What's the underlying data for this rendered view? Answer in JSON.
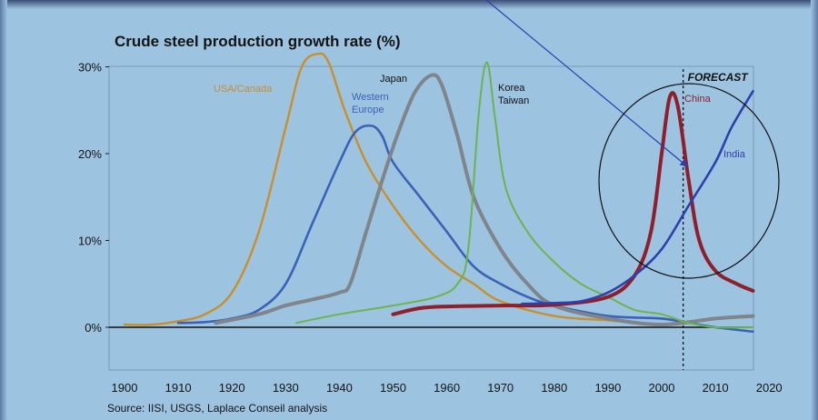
{
  "chart_data": {
    "type": "line",
    "title": "Crude steel production growth rate (%)",
    "source": "Source: IISI, USGS, Laplace Conseil analysis",
    "forecast_label": "FORECAST",
    "forecast_year": 2004,
    "xlim": [
      1900,
      2020
    ],
    "ylim": [
      -5,
      30
    ],
    "x_ticks": [
      1900,
      1910,
      1920,
      1930,
      1940,
      1950,
      1960,
      1970,
      1980,
      1990,
      2000,
      2010,
      2020
    ],
    "y_ticks": [
      {
        "value": 0,
        "label": "0%"
      },
      {
        "value": 10,
        "label": "10%"
      },
      {
        "value": 20,
        "label": "20%"
      },
      {
        "value": 30,
        "label": "30%"
      }
    ],
    "series": [
      {
        "name": "USA/Canada",
        "color": "#c98f2a",
        "points": [
          [
            1900,
            0.3
          ],
          [
            1905,
            0.3
          ],
          [
            1910,
            0.7
          ],
          [
            1915,
            1.5
          ],
          [
            1920,
            4
          ],
          [
            1925,
            11
          ],
          [
            1930,
            23
          ],
          [
            1933,
            30
          ],
          [
            1936,
            31.5
          ],
          [
            1938,
            30.5
          ],
          [
            1941,
            25
          ],
          [
            1945,
            19
          ],
          [
            1950,
            14
          ],
          [
            1955,
            10
          ],
          [
            1960,
            7
          ],
          [
            1965,
            5
          ],
          [
            1970,
            3
          ],
          [
            1980,
            1.3
          ],
          [
            1990,
            0.8
          ],
          [
            2000,
            0.3
          ],
          [
            2005,
            0.5
          ],
          [
            2010,
            1
          ],
          [
            2017,
            1.2
          ]
        ]
      },
      {
        "name": "Western Europe",
        "label_lines": [
          "Western",
          "Europe"
        ],
        "color": "#3a62b6",
        "points": [
          [
            1910,
            0.5
          ],
          [
            1915,
            0.6
          ],
          [
            1920,
            1
          ],
          [
            1925,
            2
          ],
          [
            1930,
            5
          ],
          [
            1935,
            12
          ],
          [
            1940,
            19
          ],
          [
            1943,
            22.5
          ],
          [
            1946,
            23.2
          ],
          [
            1948,
            22
          ],
          [
            1950,
            19
          ],
          [
            1955,
            15
          ],
          [
            1960,
            11
          ],
          [
            1965,
            7
          ],
          [
            1970,
            5
          ],
          [
            1975,
            3.5
          ],
          [
            1980,
            2.5
          ],
          [
            1990,
            1.3
          ],
          [
            2000,
            1
          ],
          [
            2005,
            0.5
          ],
          [
            2010,
            0
          ],
          [
            2017,
            -0.5
          ]
        ]
      },
      {
        "name": "Japan",
        "color": "#7f858a",
        "points": [
          [
            1917,
            0.5
          ],
          [
            1925,
            1.5
          ],
          [
            1930,
            2.5
          ],
          [
            1935,
            3.2
          ],
          [
            1940,
            4
          ],
          [
            1942,
            5
          ],
          [
            1945,
            11
          ],
          [
            1948,
            17
          ],
          [
            1951,
            22.5
          ],
          [
            1954,
            27
          ],
          [
            1957,
            29
          ],
          [
            1959,
            28
          ],
          [
            1962,
            22
          ],
          [
            1965,
            15
          ],
          [
            1970,
            9
          ],
          [
            1975,
            5
          ],
          [
            1980,
            2.5
          ],
          [
            1990,
            1
          ],
          [
            2000,
            0.3
          ],
          [
            2010,
            1
          ],
          [
            2017,
            1.3
          ]
        ]
      },
      {
        "name": "Korea Taiwan",
        "label_lines": [
          "Korea",
          "Taiwan"
        ],
        "color": "#6db44c",
        "points": [
          [
            1932,
            0.5
          ],
          [
            1940,
            1.5
          ],
          [
            1950,
            2.5
          ],
          [
            1958,
            3.5
          ],
          [
            1962,
            5
          ],
          [
            1964,
            9
          ],
          [
            1966,
            25
          ],
          [
            1967.5,
            30.5
          ],
          [
            1969,
            24
          ],
          [
            1971,
            16
          ],
          [
            1975,
            11
          ],
          [
            1980,
            7.5
          ],
          [
            1985,
            5
          ],
          [
            1990,
            3.5
          ],
          [
            1995,
            2
          ],
          [
            2000,
            1.5
          ],
          [
            2005,
            0.5
          ],
          [
            2010,
            0
          ],
          [
            2017,
            0
          ]
        ]
      },
      {
        "name": "China",
        "color": "#8e1f2b",
        "points": [
          [
            1950,
            1.5
          ],
          [
            1955,
            2.2
          ],
          [
            1960,
            2.4
          ],
          [
            1970,
            2.5
          ],
          [
            1980,
            2.6
          ],
          [
            1990,
            3.5
          ],
          [
            1995,
            6
          ],
          [
            1998,
            11
          ],
          [
            2000,
            20
          ],
          [
            2001.5,
            26.5
          ],
          [
            2003,
            25.5
          ],
          [
            2005,
            17
          ],
          [
            2007,
            10
          ],
          [
            2010,
            6.5
          ],
          [
            2014,
            5
          ],
          [
            2017,
            4.2
          ]
        ]
      },
      {
        "name": "India",
        "color": "#2e3fae",
        "points": [
          [
            1974,
            2.7
          ],
          [
            1980,
            2.8
          ],
          [
            1985,
            3
          ],
          [
            1990,
            4
          ],
          [
            1995,
            6
          ],
          [
            2000,
            9
          ],
          [
            2005,
            14
          ],
          [
            2010,
            19
          ],
          [
            2013,
            23
          ],
          [
            2017,
            27.2
          ]
        ]
      }
    ]
  }
}
